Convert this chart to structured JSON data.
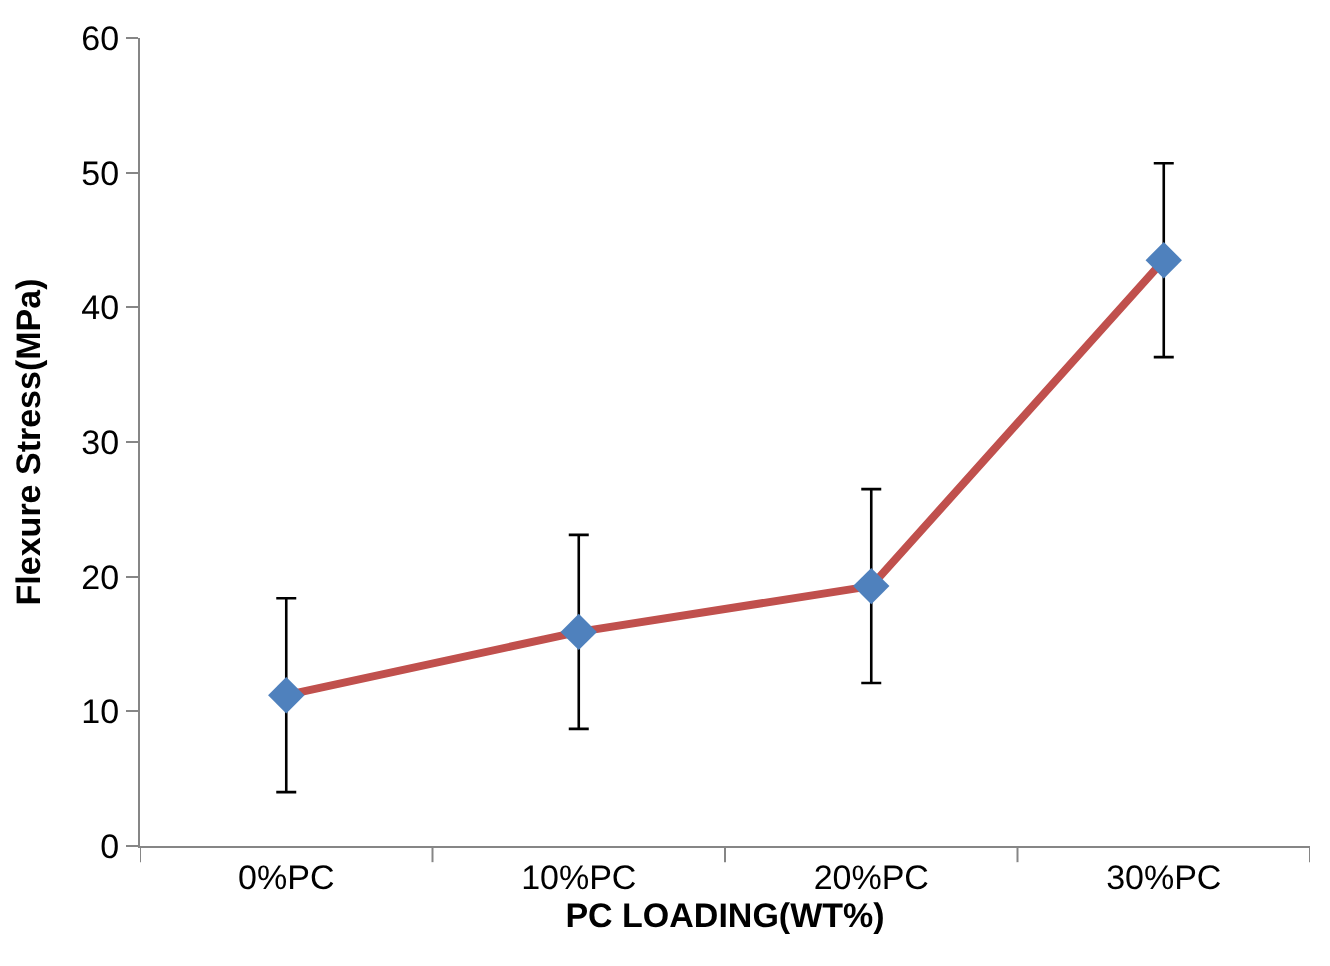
{
  "chart_data": {
    "type": "line",
    "xlabel": "PC LOADING(WT%)",
    "ylabel": "Flexure Stress(MPa)",
    "categories": [
      "0%PC",
      "10%PC",
      "20%PC",
      "30%PC"
    ],
    "series": [
      {
        "color": "#c0504d",
        "colors": [
          "#4f81bd",
          "#4f81bd",
          "#4f81bd",
          "#4f81bd"
        ],
        "values": [
          11.2,
          15.9,
          19.3,
          43.5
        ],
        "errors": [
          7.2,
          7.2,
          7.2,
          7.2
        ]
      }
    ],
    "ylim": [
      0,
      60
    ],
    "yticks": [
      0,
      10,
      20,
      30,
      40,
      50,
      60
    ],
    "marker": "diamond",
    "line_style": "solid"
  }
}
